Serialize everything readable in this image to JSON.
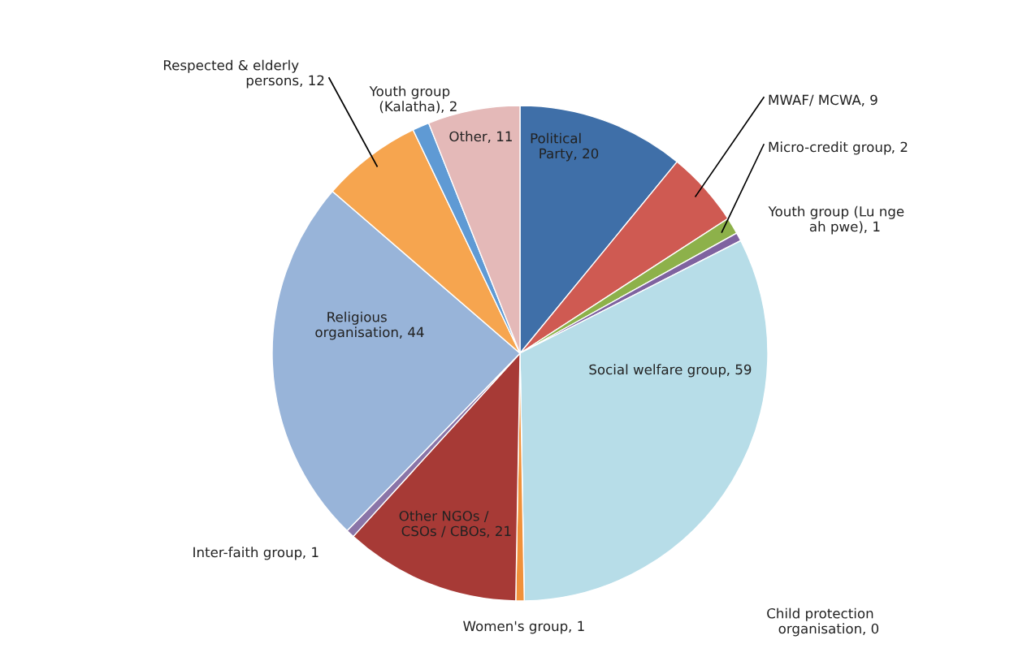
{
  "chart_data": {
    "type": "pie",
    "categories": [
      "Political\nParty",
      "MWAF/ MCWA",
      "Micro-credit group",
      "Youth group (Lu nge\nah pwe)",
      "Social welfare group",
      "Child protection\norganisation",
      "Women's group",
      "Other NGOs /\nCSOs / CBOs",
      "Inter-faith group",
      "Religious\norganisation",
      "Respected & elderly\npersons",
      "Youth group\n(Kalatha)",
      "Other"
    ],
    "values": [
      20,
      9,
      2,
      1,
      59,
      0,
      1,
      21,
      1,
      44,
      12,
      2,
      11
    ],
    "value_labels": [
      ", 20",
      ", 9",
      ", 2",
      ", 1",
      ", 59",
      ", 0",
      ", 1",
      ", 21",
      ", 1",
      ", 44",
      ", 12",
      ", 2",
      ", 11"
    ],
    "colors": [
      "#3f6fa8",
      "#cf5a52",
      "#8db14a",
      "#7f63a0",
      "#b7dde8",
      "#4bacc6",
      "#f0913a",
      "#a73a36",
      "#8a75a8",
      "#98b4d9",
      "#f6a54f",
      "#5f9ad4",
      "#e4b9b8"
    ],
    "legend": false
  }
}
